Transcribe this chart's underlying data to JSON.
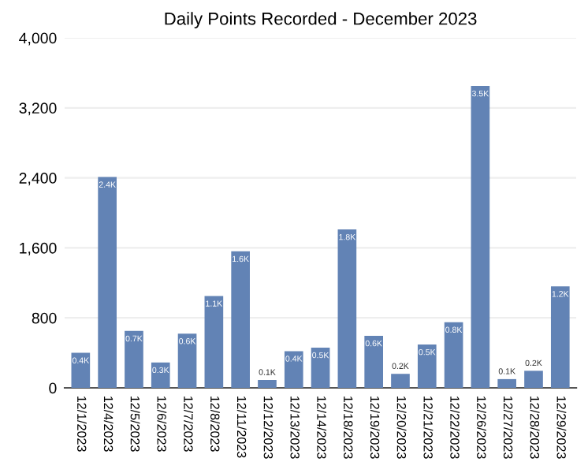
{
  "chart_data": {
    "type": "bar",
    "title": "Daily Points Recorded - December 2023",
    "categories": [
      "12/1/2023",
      "12/4/2023",
      "12/5/2023",
      "12/6/2023",
      "12/7/2023",
      "12/8/2023",
      "12/11/2023",
      "12/12/2023",
      "12/13/2023",
      "12/14/2023",
      "12/18/2023",
      "12/19/2023",
      "12/20/2023",
      "12/21/2023",
      "12/22/2023",
      "12/26/2023",
      "12/27/2023",
      "12/28/2023",
      "12/29/2023"
    ],
    "values": [
      400,
      2410,
      650,
      290,
      620,
      1050,
      1560,
      90,
      420,
      460,
      1810,
      595,
      160,
      495,
      750,
      3450,
      100,
      195,
      1160
    ],
    "value_labels": [
      "0.4K",
      "2.4K",
      "0.7K",
      "0.3K",
      "0.6K",
      "1.1K",
      "1.6K",
      "0.1K",
      "0.4K",
      "0.5K",
      "1.8K",
      "0.6K",
      "0.2K",
      "0.5K",
      "0.8K",
      "3.5K",
      "0.1K",
      "0.2K",
      "1.2K"
    ],
    "color": "#6283b5",
    "ylim": [
      0,
      4000
    ],
    "yticks": [
      0,
      800,
      {
        "value": 1600,
        "label": "1,600"
      },
      {
        "value": 2400,
        "label": "2,400"
      },
      {
        "value": 3200,
        "label": "3,200"
      },
      {
        "value": 4000,
        "label": "4,000"
      }
    ],
    "grid": "y"
  }
}
